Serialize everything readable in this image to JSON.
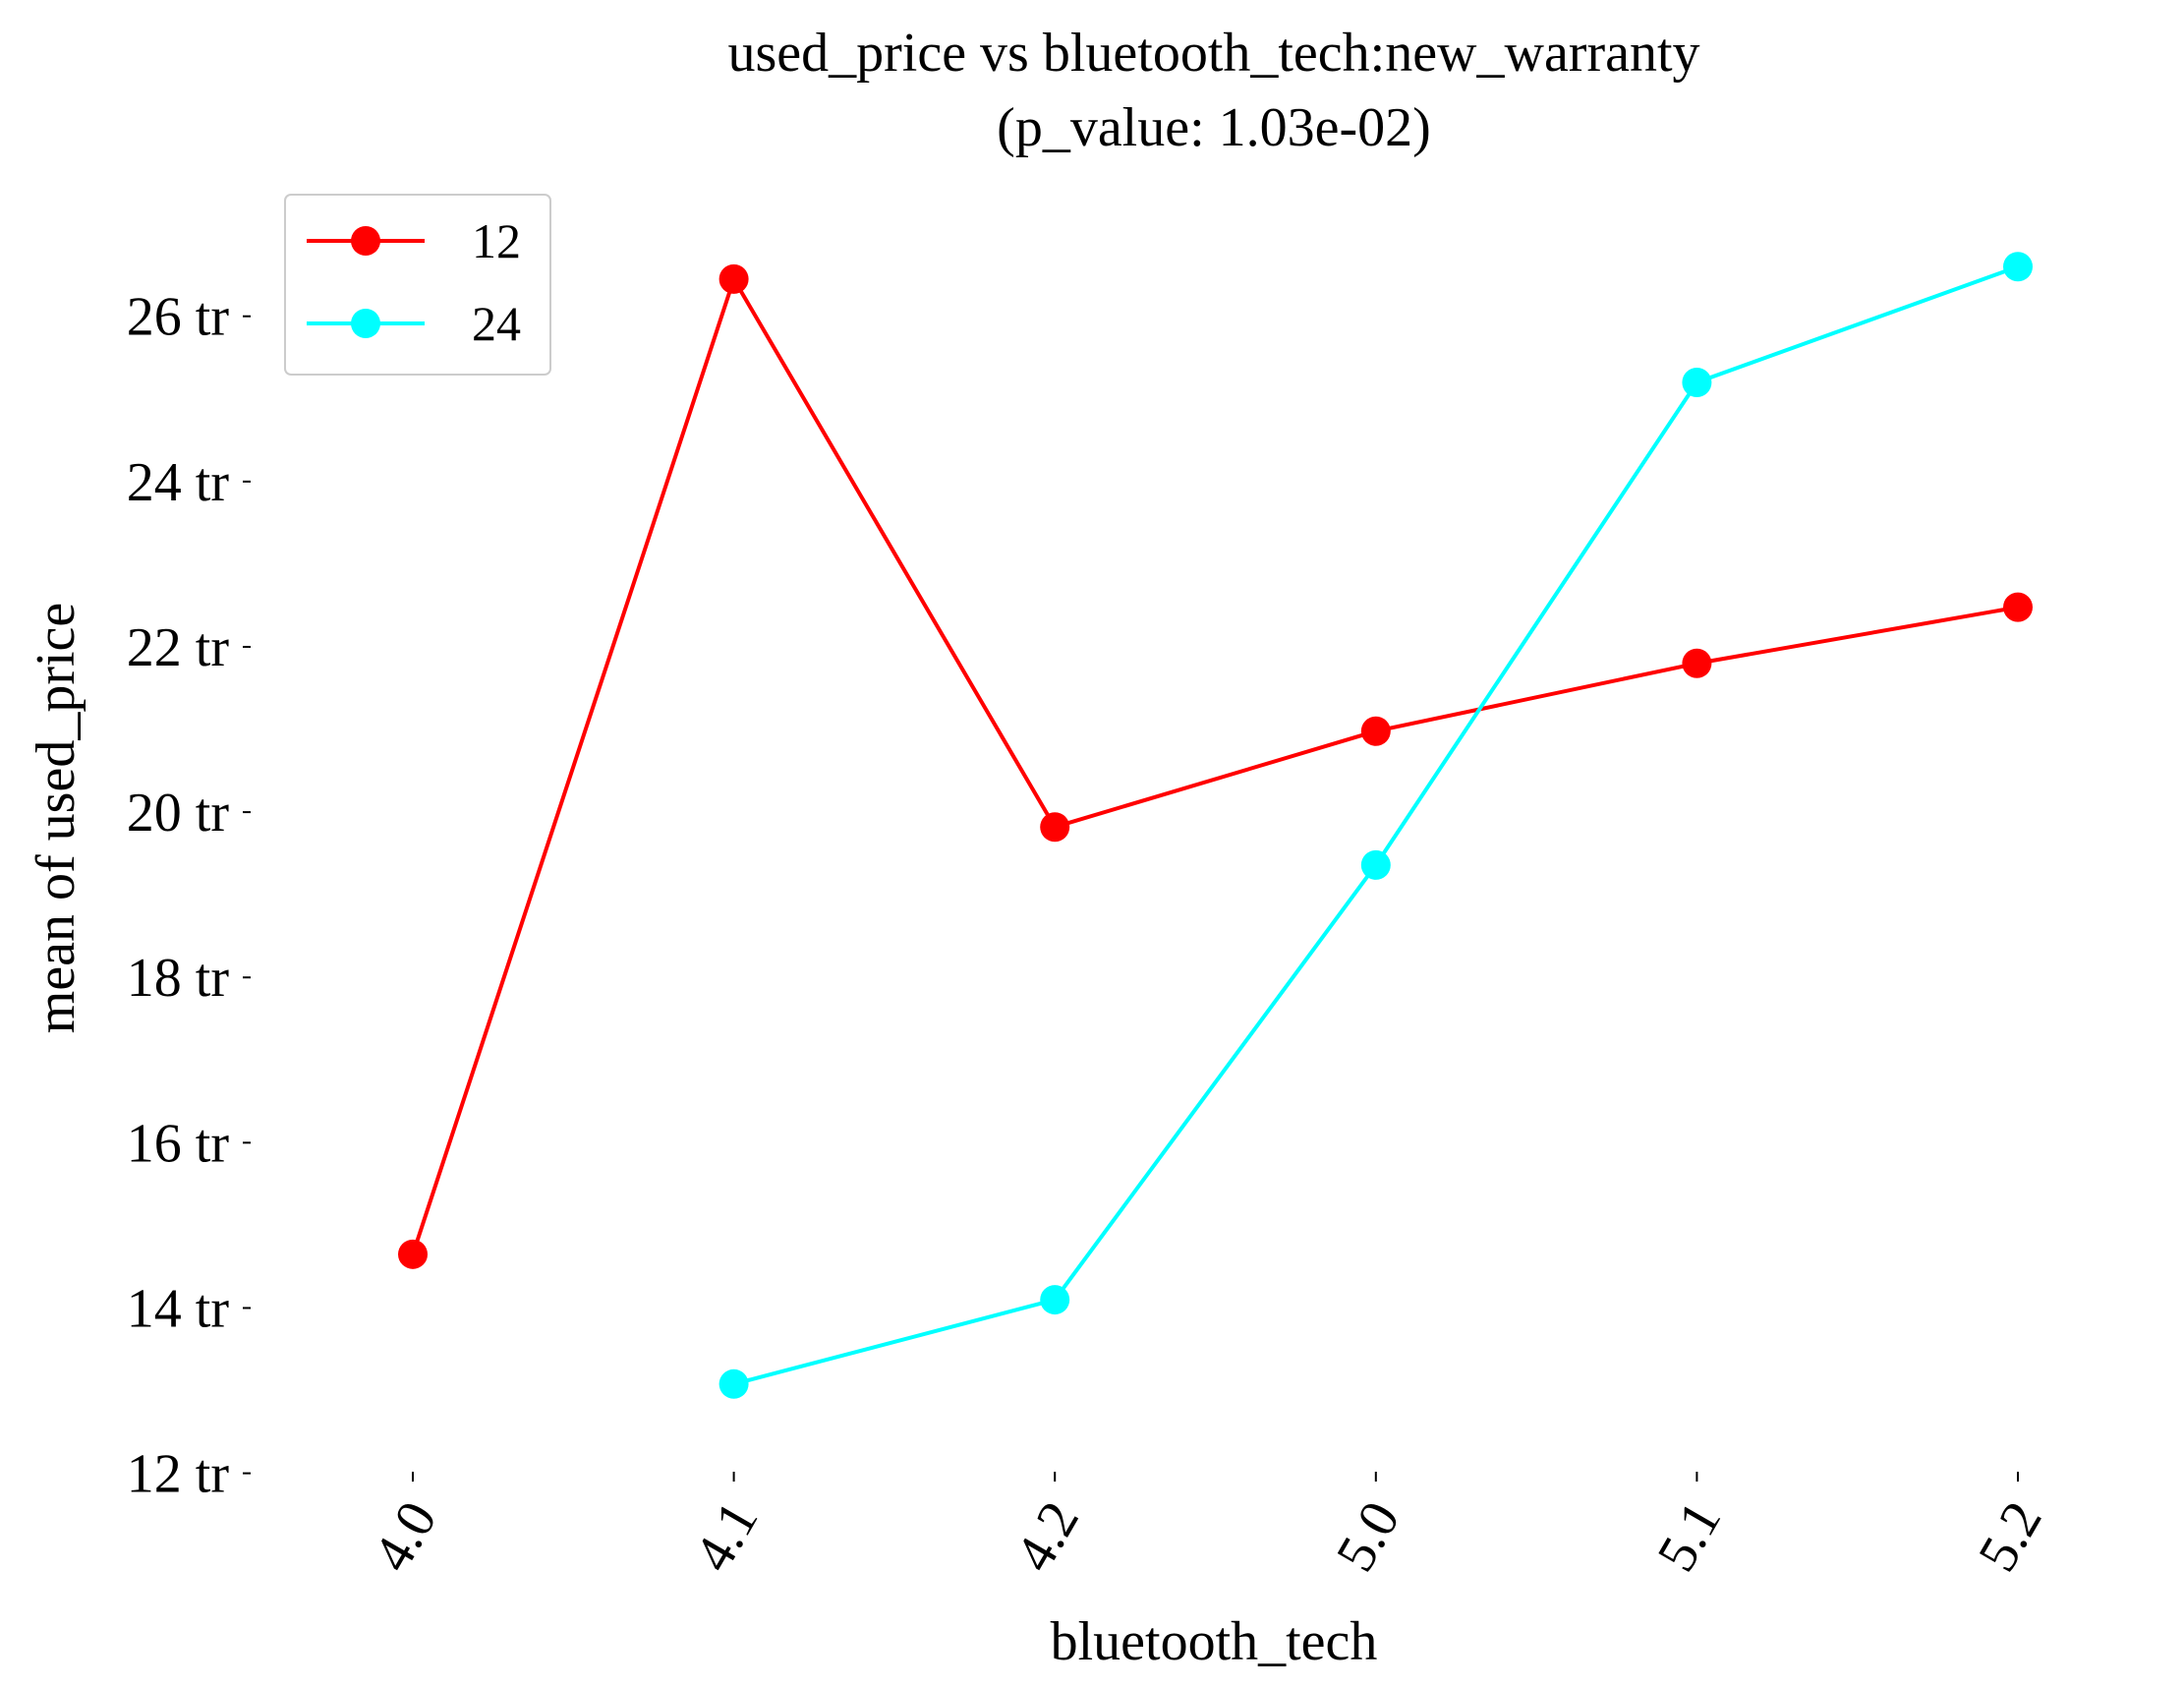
{
  "chart_data": {
    "type": "line",
    "title": "used_price vs bluetooth_tech:new_warranty",
    "subtitle": "(p_value: 1.03e-02)",
    "xlabel": "bluetooth_tech",
    "ylabel": "mean of used_price",
    "categories": [
      "4.0",
      "4.1",
      "4.2",
      "5.0",
      "5.1",
      "5.2"
    ],
    "y_ticks": [
      12,
      14,
      16,
      18,
      20,
      22,
      24,
      26
    ],
    "y_tick_suffix": " tr",
    "ylim": [
      11.9,
      27.9
    ],
    "grid": false,
    "legend_position": "top-left",
    "series": [
      {
        "name": "12",
        "color": "#ff0000",
        "values": [
          14.65,
          26.45,
          19.82,
          20.98,
          21.8,
          22.48
        ]
      },
      {
        "name": "24",
        "color": "#00ffff",
        "values": [
          null,
          13.08,
          14.1,
          19.36,
          25.2,
          26.6
        ]
      }
    ]
  }
}
